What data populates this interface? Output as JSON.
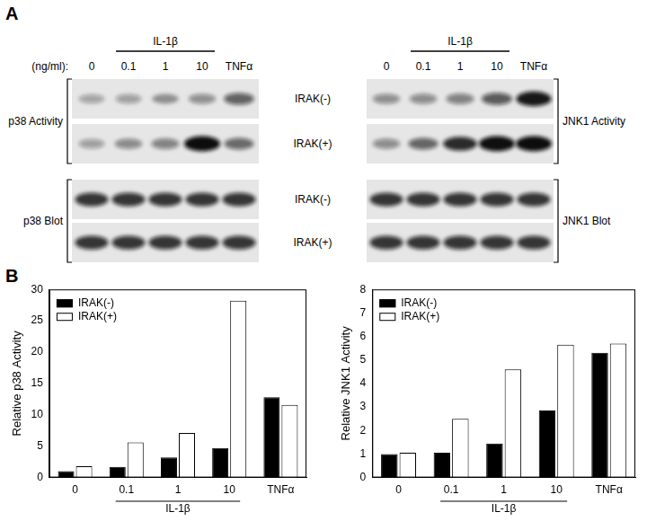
{
  "panel_a": {
    "label": "A",
    "dose_header": "(ng/ml):",
    "group_label": "IL-1β",
    "group_span": [
      "0.1",
      "10"
    ],
    "lanes": [
      "0",
      "0.1",
      "1",
      "10",
      "TNFα"
    ],
    "rows": [
      "IRAK(-)",
      "IRAK(+)"
    ],
    "left_activity": "p38 Activity",
    "right_activity": "JNK1 Activity",
    "left_blot": "p38 Blot",
    "right_blot": "JNK1 Blot"
  },
  "panel_b_label": "B",
  "chart_data": [
    {
      "type": "bar",
      "y_label": "Relative p38 Activity",
      "categories": [
        "0",
        "0.1",
        "1",
        "10",
        "TNFα"
      ],
      "series": [
        {
          "name": "IRAK(-)",
          "color": "#000000",
          "values": [
            1,
            1.7,
            3.2,
            4.7,
            12.8
          ]
        },
        {
          "name": "IRAK(+)",
          "color": "#ffffff",
          "values": [
            1.8,
            5.6,
            7.1,
            28.2,
            11.6
          ]
        }
      ],
      "ylim": [
        0,
        30
      ],
      "yticks": [
        0,
        5,
        10,
        15,
        20,
        25,
        30
      ],
      "grid": false,
      "legend": "upper left",
      "annotations": [
        {
          "text": "IL-1β",
          "span": [
            "0.1",
            "10"
          ]
        }
      ]
    },
    {
      "type": "bar",
      "y_label": "Relative JNK1 Activity",
      "categories": [
        "0",
        "0.1",
        "1",
        "10",
        "TNFα"
      ],
      "series": [
        {
          "name": "IRAK(-)",
          "color": "#000000",
          "values": [
            1,
            1.05,
            1.45,
            2.85,
            5.3
          ]
        },
        {
          "name": "IRAK(+)",
          "color": "#ffffff",
          "values": [
            1.05,
            2.5,
            4.6,
            5.65,
            5.7
          ]
        }
      ],
      "ylim": [
        0,
        8
      ],
      "yticks": [
        0,
        1,
        2,
        3,
        4,
        5,
        6,
        7,
        8
      ],
      "grid": false,
      "legend": "upper left",
      "annotations": [
        {
          "text": "IL-1β",
          "span": [
            "0.1",
            "10"
          ]
        }
      ]
    }
  ]
}
